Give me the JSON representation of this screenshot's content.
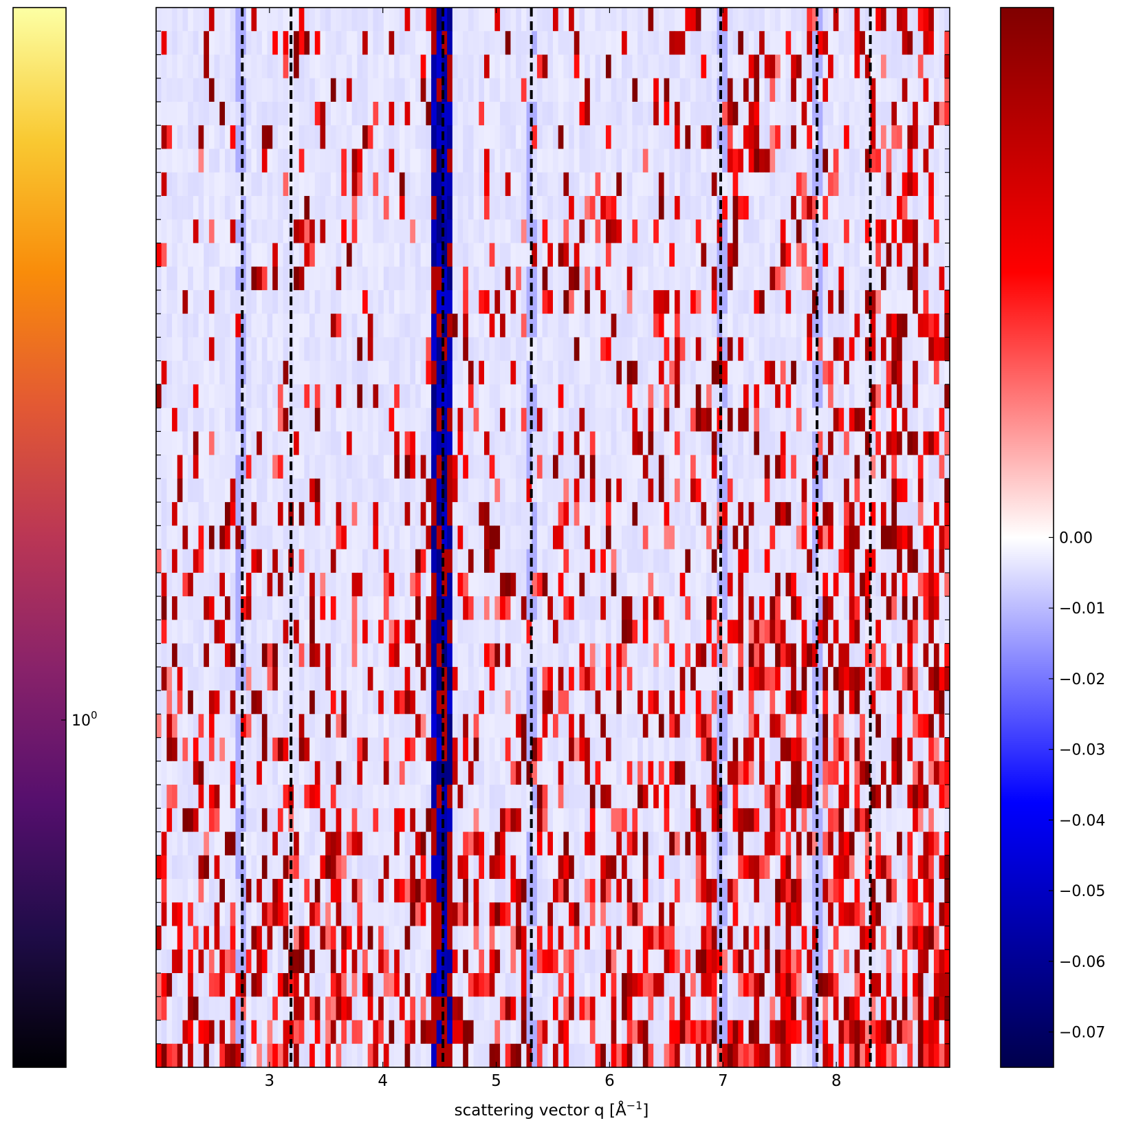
{
  "chart_data": [
    {
      "type": "heatmap",
      "title": "",
      "xlabel": "scattering vector q [Å⁻¹]",
      "xlabel_base": "scattering vector q [Å",
      "xlabel_exp": "−1",
      "xlabel_close": "]",
      "ylabel": "",
      "xlim": [
        2.0,
        9.0
      ],
      "xticks": [
        3,
        4,
        5,
        6,
        7,
        8
      ],
      "xtick_labels": [
        "3",
        "4",
        "5",
        "6",
        "7",
        "8"
      ],
      "y_rows": 45,
      "yticks_labeled": false,
      "reference_lines_q": [
        2.76,
        3.19,
        4.53,
        5.31,
        6.98,
        7.83,
        8.3
      ],
      "reference_line_style": "black dashed",
      "colormap": "seismic",
      "color_range": [
        -0.075,
        0.075
      ],
      "features": {
        "strong_negative_column_q": 4.53,
        "weak_negative_columns_q": [
          2.76,
          5.31,
          6.98,
          7.83
        ],
        "lower_rows_more_positive": true,
        "higher_q_more_positive": true
      }
    },
    {
      "type": "colorbar",
      "position": "right",
      "colormap": "seismic",
      "range": [
        -0.075,
        0.075
      ],
      "ticks": [
        0.0,
        -0.01,
        -0.02,
        -0.03,
        -0.04,
        -0.05,
        -0.06,
        -0.07
      ],
      "tick_labels": [
        "0.00",
        "−0.01",
        "−0.02",
        "−0.03",
        "−0.04",
        "−0.05",
        "−0.06",
        "−0.07"
      ]
    },
    {
      "type": "colorbar",
      "position": "left",
      "colormap": "inferno",
      "scale": "log",
      "range": [
        0.35,
        3.0
      ],
      "ticks": [
        1.0
      ],
      "tick_label_base": "10",
      "tick_label_exp": "0"
    }
  ],
  "colors": {
    "seismic": [
      "#00004c",
      "#0000ff",
      "#ffffff",
      "#ff0000",
      "#800000"
    ],
    "inferno": [
      "#000004",
      "#1f0c48",
      "#550f6d",
      "#88226a",
      "#ba3655",
      "#e35933",
      "#f98c0a",
      "#f9c932",
      "#fcffa4"
    ]
  }
}
